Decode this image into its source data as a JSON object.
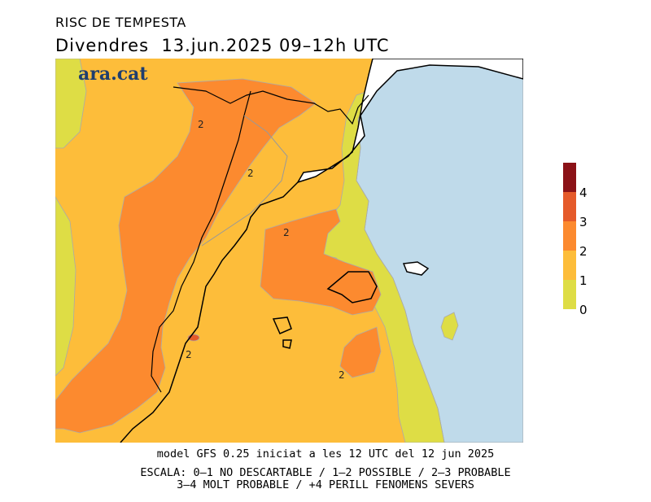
{
  "header": {
    "title": "RISC DE TEMPESTA",
    "date_line": "Divendres  13.jun.2025 09–12h UTC"
  },
  "brand": {
    "logo_text": "ara.cat"
  },
  "map": {
    "contour_labels": [
      "2",
      "2",
      "2",
      "2",
      "2"
    ]
  },
  "legend": {
    "levels": [
      "4",
      "3",
      "2",
      "1",
      "0"
    ],
    "colors": {
      "level_0_1": "#dedd45",
      "level_1_2": "#fdbd3a",
      "level_2_3": "#fc8a2f",
      "level_3_4": "#e55a2a",
      "level_4_plus": "#8b1217",
      "sea": "#bfdaea"
    }
  },
  "footer": {
    "model_line": "model GFS 0.25 iniciat a les 12 UTC del 12 jun 2025",
    "scale_line1": "ESCALA: 0–1 NO DESCARTABLE / 1–2 POSSIBLE / 2–3 PROBABLE",
    "scale_line2": "3–4 MOLT PROBABLE / +4 PERILL FENOMENS SEVERS"
  }
}
